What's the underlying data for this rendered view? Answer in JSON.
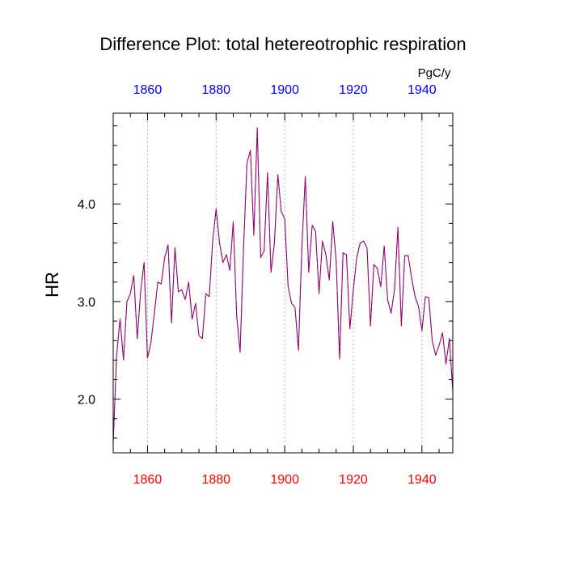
{
  "chart_data": {
    "type": "line",
    "title": "Difference Plot: total hetereotrophic respiration",
    "units": "PgC/y",
    "ylabel": "HR",
    "xlabel": "",
    "xlim": [
      1850,
      1949
    ],
    "ylim": [
      1.45,
      4.93
    ],
    "grid": "vertical dashed at major x ticks",
    "x_ticks": [
      1860,
      1880,
      1900,
      1920,
      1940
    ],
    "x_tick_labels": [
      "1860",
      "1880",
      "1900",
      "1920",
      "1940"
    ],
    "y_ticks": [
      2.0,
      3.0,
      4.0
    ],
    "y_tick_labels": [
      "2.0",
      "3.0",
      "4.0"
    ],
    "colors": {
      "bottom_axis_labels": "#ff0000",
      "top_axis_labels": "#0000ff",
      "series_a": "#0000ff",
      "series_b": "#ff0000"
    },
    "series": [
      {
        "name": "HR",
        "x": [
          1850,
          1851,
          1852,
          1853,
          1854,
          1855,
          1856,
          1857,
          1858,
          1859,
          1860,
          1861,
          1862,
          1863,
          1864,
          1865,
          1866,
          1867,
          1868,
          1869,
          1870,
          1871,
          1872,
          1873,
          1874,
          1875,
          1876,
          1877,
          1878,
          1879,
          1880,
          1881,
          1882,
          1883,
          1884,
          1885,
          1886,
          1887,
          1888,
          1889,
          1890,
          1891,
          1892,
          1893,
          1894,
          1895,
          1896,
          1897,
          1898,
          1899,
          1900,
          1901,
          1902,
          1903,
          1904,
          1905,
          1906,
          1907,
          1908,
          1909,
          1910,
          1911,
          1912,
          1913,
          1914,
          1915,
          1916,
          1917,
          1918,
          1919,
          1920,
          1921,
          1922,
          1923,
          1924,
          1925,
          1926,
          1927,
          1928,
          1929,
          1930,
          1931,
          1932,
          1933,
          1934,
          1935,
          1936,
          1937,
          1938,
          1939,
          1940,
          1941,
          1942,
          1943,
          1944,
          1945,
          1946,
          1947,
          1948,
          1949
        ],
        "values": [
          1.55,
          2.45,
          2.82,
          2.4,
          3.0,
          3.08,
          3.27,
          2.62,
          3.1,
          3.4,
          2.42,
          2.58,
          2.88,
          3.2,
          3.18,
          3.45,
          3.58,
          2.78,
          3.55,
          3.1,
          3.12,
          3.02,
          3.2,
          2.82,
          2.98,
          2.65,
          2.62,
          3.08,
          3.05,
          3.62,
          3.95,
          3.6,
          3.4,
          3.48,
          3.32,
          3.82,
          2.85,
          2.48,
          3.55,
          4.42,
          4.55,
          3.68,
          4.78,
          3.45,
          3.52,
          4.32,
          3.3,
          3.6,
          4.3,
          3.92,
          3.85,
          3.15,
          2.98,
          2.94,
          2.5,
          3.55,
          4.28,
          3.3,
          3.78,
          3.72,
          3.08,
          3.62,
          3.48,
          3.22,
          3.82,
          3.42,
          2.41,
          3.5,
          3.48,
          2.72,
          3.12,
          3.45,
          3.6,
          3.62,
          3.55,
          2.75,
          3.38,
          3.34,
          3.15,
          3.57,
          3.02,
          2.88,
          3.12,
          3.76,
          2.75,
          3.47,
          3.47,
          3.24,
          3.05,
          2.95,
          2.7,
          3.05,
          3.04,
          2.6,
          2.45,
          2.55,
          2.68,
          2.36,
          2.62,
          2.08
        ]
      }
    ]
  }
}
